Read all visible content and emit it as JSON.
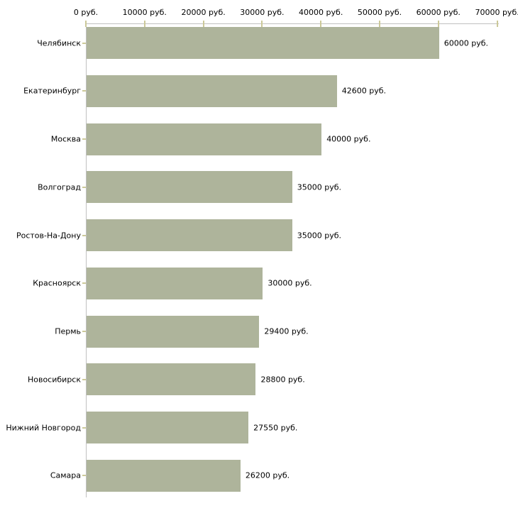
{
  "chart_data": {
    "type": "bar",
    "orientation": "horizontal",
    "title": "",
    "xlabel": "",
    "ylabel": "",
    "categories": [
      "Челябинск",
      "Екатеринбург",
      "Москва",
      "Волгоград",
      "Ростов-На-Дону",
      "Красноярск",
      "Пермь",
      "Новосибирск",
      "Нижний Новгород",
      "Самара"
    ],
    "values": [
      60000,
      42600,
      40000,
      35000,
      35000,
      30000,
      29400,
      28800,
      27550,
      26200
    ],
    "value_labels": [
      "60000 руб.",
      "42600 руб.",
      "40000 руб.",
      "35000 руб.",
      "35000 руб.",
      "30000 руб.",
      "29400 руб.",
      "28800 руб.",
      "27550 руб.",
      "26200 руб."
    ],
    "x_ticks": [
      0,
      10000,
      20000,
      30000,
      40000,
      50000,
      60000,
      70000
    ],
    "x_tick_labels": [
      "0 руб.",
      "10000 руб.",
      "20000 руб.",
      "30000 руб.",
      "40000 руб.",
      "50000 руб.",
      "60000 руб.",
      "70000 руб."
    ],
    "xlim": [
      0,
      70000
    ],
    "grid": false,
    "legend": "none",
    "currency_suffix": "руб.",
    "bar_color": "#aeb49b",
    "axis_color": "#c0c0c0",
    "tick_color": "#ccc999",
    "text_color": "#000000",
    "background_color": "#ffffff"
  }
}
